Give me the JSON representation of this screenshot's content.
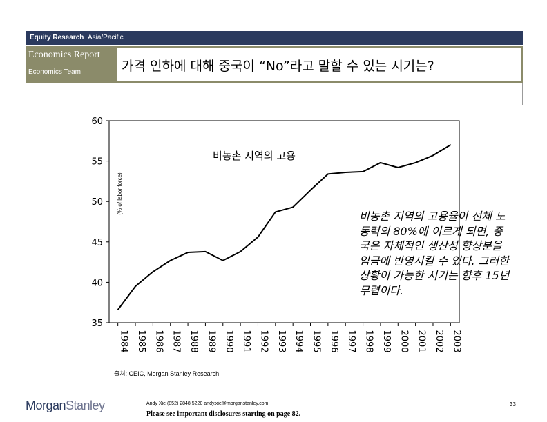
{
  "header": {
    "dept_bold": "Equity Research",
    "region": "Asia/Pacific",
    "report_type": "Economics Report",
    "team": "Economics Team",
    "title": "가격 인하에 대해 중국이 “No”라고 말할 수 있는 시기는?"
  },
  "colors": {
    "header_navy": "#2b3a5e",
    "header_olive": "#8b8b6a",
    "plot_line": "#000000"
  },
  "chart_data": {
    "type": "line",
    "title": "비농촌 지역의 고용",
    "xlabel": "",
    "ylabel": "(% of labor force)",
    "x": [
      "1984",
      "1985",
      "1986",
      "1987",
      "1988",
      "1989",
      "1990",
      "1991",
      "1992",
      "1993",
      "1994",
      "1995",
      "1996",
      "1997",
      "1998",
      "1999",
      "2000",
      "2001",
      "2002",
      "2003"
    ],
    "series": [
      {
        "values": [
          36.6,
          39.5,
          41.3,
          42.7,
          43.7,
          43.8,
          42.7,
          43.8,
          45.6,
          48.7,
          49.3,
          51.4,
          53.4,
          53.6,
          53.7,
          54.8,
          54.2,
          54.8,
          55.7,
          57.0
        ]
      }
    ],
    "ylim": [
      35,
      60
    ],
    "yticks": [
      "35",
      "40",
      "45",
      "50",
      "55",
      "60"
    ],
    "grid": false
  },
  "annotation": "비농촌 지역의 고용율이 전체 노동력의 80%에 이르게 되면, 중국은 자체적인 생산성 향상분을 임금에 반영시킬 수 있다. 그러한 상황이 가능한 시기는 향후 15년 무렵이다.",
  "source": "출처: CEIC, Morgan Stanley Research",
  "footer": {
    "logo_bold": "Morgan",
    "logo_light": "Stanley",
    "contact": "Andy Xie (852) 2848 5220  andy.xie@morganstanley.com",
    "disclaimer": "Please see important disclosures starting on page 82.",
    "page": "33"
  }
}
